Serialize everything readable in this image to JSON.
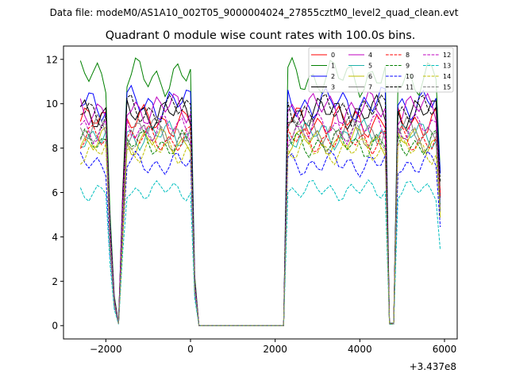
{
  "figure": {
    "suptitle": "Data file: modeM0/AS1A10_002T05_9000004024_27855cztM0_level2_quad_clean.evt",
    "offset_label": "+3.437e8"
  },
  "chart_data": {
    "type": "line",
    "title": "Quadrant 0 module wise count rates with 100.0s bins.",
    "xlabel": "",
    "ylabel": "",
    "xlim": [
      -3000,
      6300
    ],
    "ylim": [
      -0.6,
      12.6
    ],
    "x_offset": 343700000,
    "xticks": [
      -2000,
      0,
      2000,
      4000,
      6000
    ],
    "xtick_labels": [
      "−2000",
      "0",
      "2000",
      "4000",
      "6000"
    ],
    "yticks": [
      0,
      2,
      4,
      6,
      8,
      10,
      12
    ],
    "ytick_labels": [
      "0",
      "2",
      "4",
      "6",
      "8",
      "10",
      "12"
    ],
    "grid": false,
    "legend": {
      "location": "upper right",
      "ncol": 4
    },
    "x": [
      -2600,
      -2500,
      -2400,
      -2300,
      -2200,
      -2100,
      -2000,
      -1900,
      -1800,
      -1700,
      -1600,
      -1500,
      -1400,
      -1300,
      -1200,
      -1100,
      -1000,
      -900,
      -800,
      -700,
      -600,
      -500,
      -400,
      -300,
      -200,
      -100,
      0,
      100,
      200,
      300,
      400,
      500,
      600,
      700,
      800,
      900,
      1000,
      1100,
      1200,
      1300,
      1400,
      1500,
      1600,
      1700,
      1800,
      1900,
      2000,
      2100,
      2200,
      2300,
      2400,
      2500,
      2600,
      2700,
      2800,
      2900,
      3000,
      3100,
      3200,
      3300,
      3400,
      3500,
      3600,
      3700,
      3800,
      3900,
      4000,
      4100,
      4200,
      4300,
      4400,
      4500,
      4600,
      4700,
      4800,
      4900,
      5000,
      5100,
      5200,
      5300,
      5400,
      5500,
      5600,
      5700,
      5800,
      5900
    ],
    "gap_fraction": [
      1,
      1,
      1,
      1,
      1,
      1,
      1,
      0.45,
      0.12,
      0.01,
      0.55,
      1,
      1,
      1,
      1,
      1,
      1,
      1,
      1,
      1,
      1,
      1,
      1,
      1,
      1,
      1,
      1,
      0.2,
      0,
      0,
      0,
      0,
      0,
      0,
      0,
      0,
      0,
      0,
      0,
      0,
      0,
      0,
      0,
      0,
      0,
      0,
      0,
      0,
      0,
      1,
      1,
      1,
      1,
      1,
      1,
      1,
      1,
      1,
      1,
      1,
      1,
      1,
      1,
      1,
      1,
      1,
      1,
      1,
      1,
      1,
      1,
      1,
      1,
      0.01,
      0.01,
      1,
      1,
      1,
      1,
      1,
      1,
      1,
      1,
      1,
      1,
      0.62
    ],
    "series": [
      {
        "name": "0",
        "color": "#ff0000",
        "style": "solid",
        "level": 9.2
      },
      {
        "name": "1",
        "color": "#008000",
        "style": "solid",
        "level": 11.2
      },
      {
        "name": "2",
        "color": "#0000ff",
        "style": "solid",
        "level": 10.0
      },
      {
        "name": "3",
        "color": "#000000",
        "style": "solid",
        "level": 9.6
      },
      {
        "name": "4",
        "color": "#bf00bf",
        "style": "solid",
        "level": 9.8
      },
      {
        "name": "5",
        "color": "#20b2aa",
        "style": "solid",
        "level": 8.6
      },
      {
        "name": "6",
        "color": "#bfbf00",
        "style": "solid",
        "level": 8.3
      },
      {
        "name": "7",
        "color": "#808080",
        "style": "solid",
        "level": 8.8
      },
      {
        "name": "8",
        "color": "#ff0000",
        "style": "dashed",
        "level": 8.4
      },
      {
        "name": "9",
        "color": "#008000",
        "style": "dashed",
        "level": 8.2
      },
      {
        "name": "10",
        "color": "#0000ff",
        "style": "dashed",
        "level": 7.3
      },
      {
        "name": "11",
        "color": "#000000",
        "style": "dashed",
        "level": 9.7
      },
      {
        "name": "12",
        "color": "#bf00bf",
        "style": "dashed",
        "level": 8.9
      },
      {
        "name": "13",
        "color": "#00bfbf",
        "style": "dashed",
        "level": 6.1
      },
      {
        "name": "14",
        "color": "#bfbf00",
        "style": "dashed",
        "level": 7.9
      },
      {
        "name": "15",
        "color": "#808080",
        "style": "dashed",
        "level": 8.5
      }
    ]
  }
}
